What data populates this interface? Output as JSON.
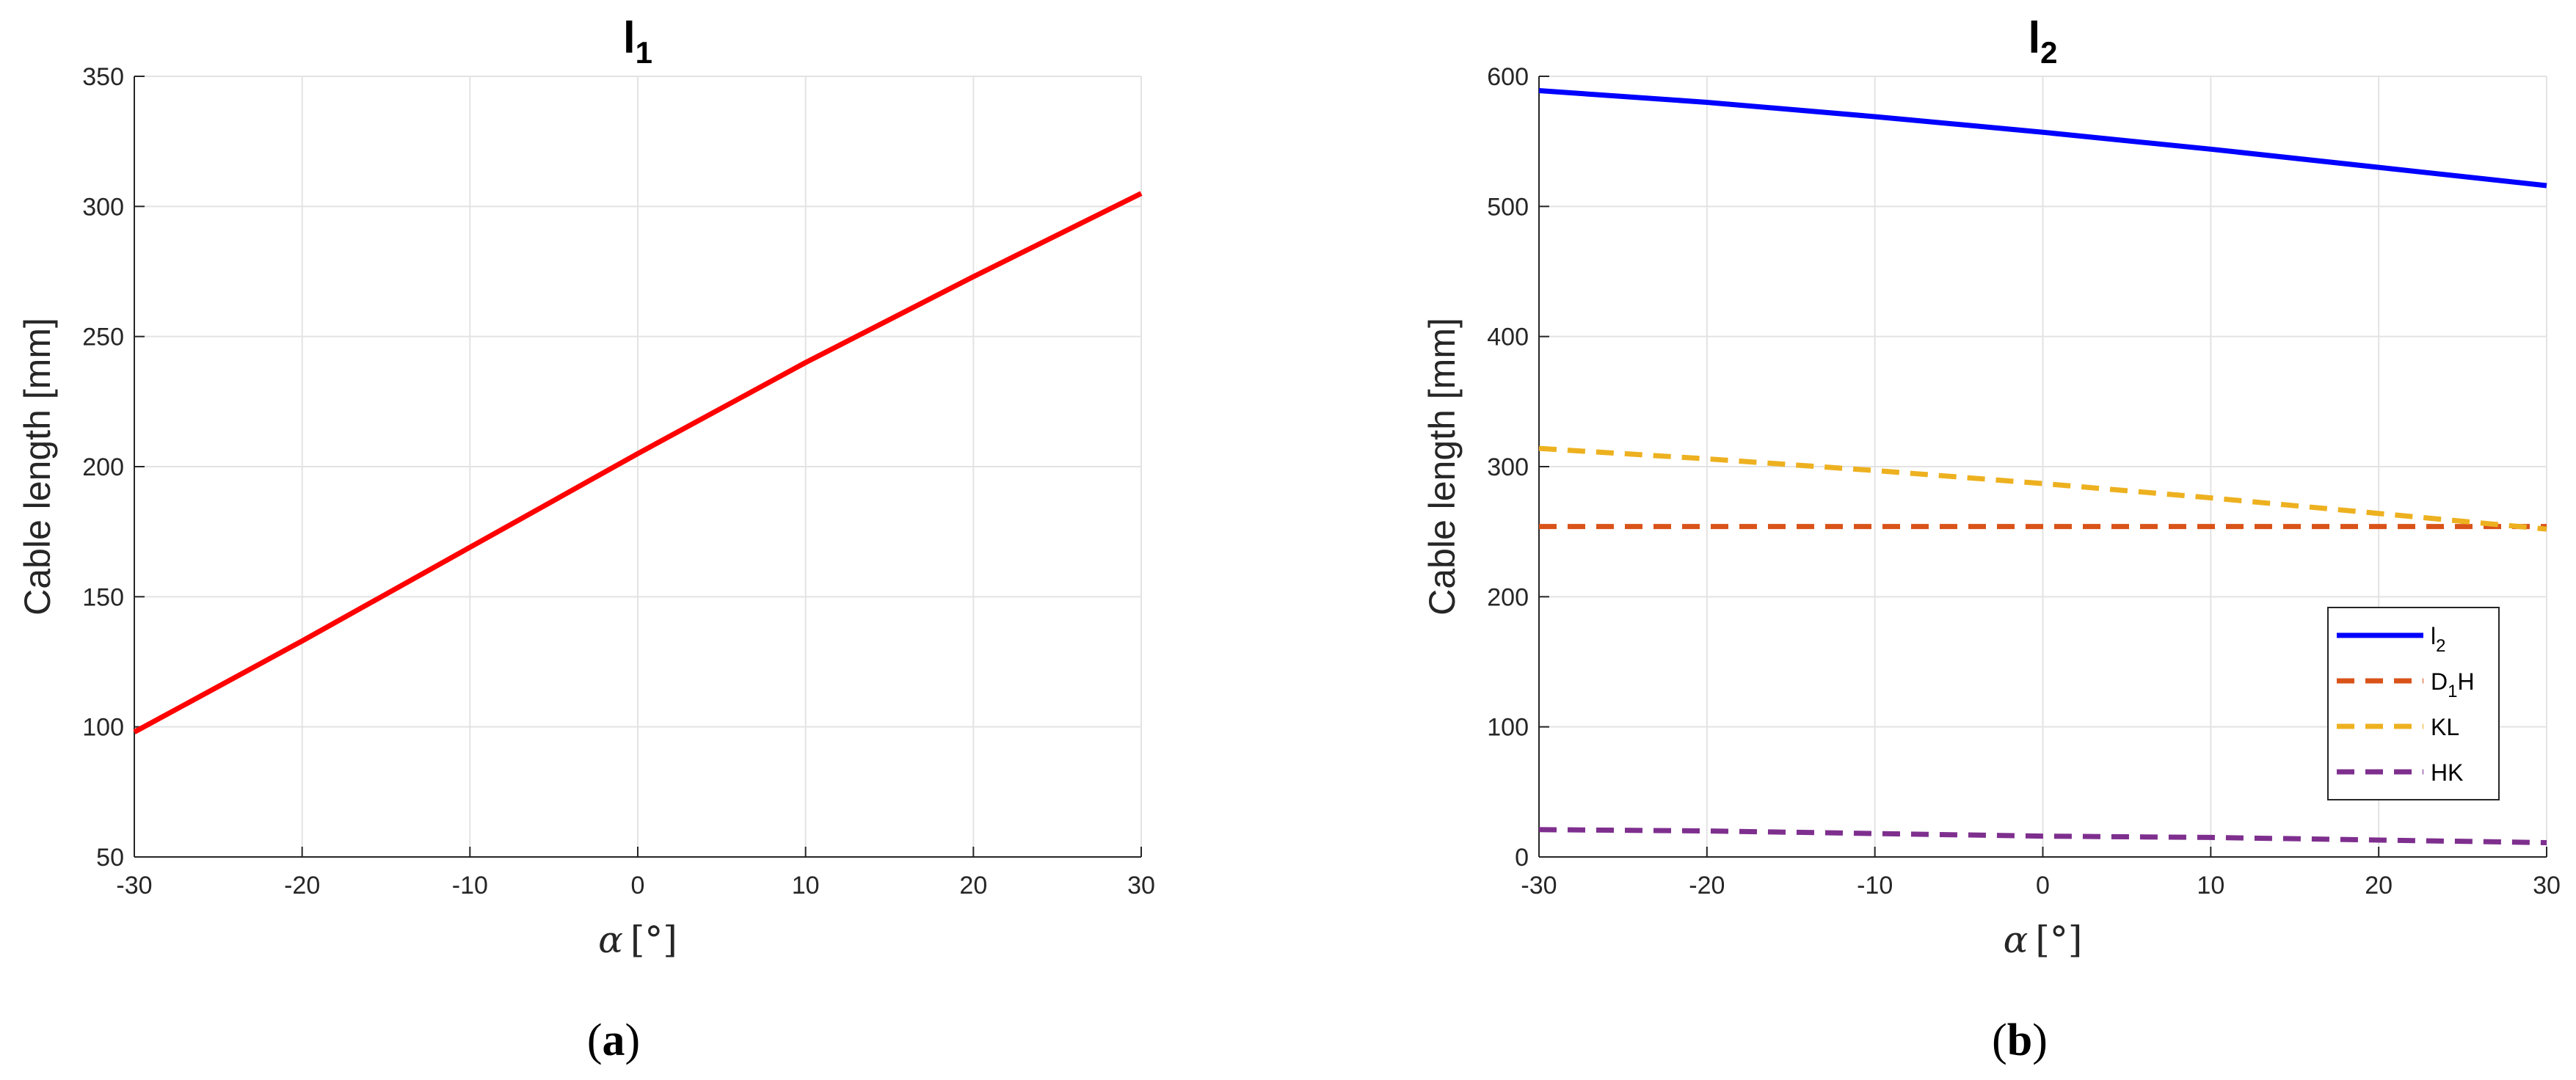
{
  "chart_data": [
    {
      "type": "line",
      "panel_label_open": "(",
      "panel_label": "a",
      "panel_label_close": ")",
      "title": "l",
      "title_sub": "1",
      "xlabel_symbol": "α",
      "xlabel_unit": "[°]",
      "ylabel": "Cable length [mm]",
      "xlim": [
        -30,
        30
      ],
      "ylim": [
        50,
        350
      ],
      "xticks": [
        -30,
        -20,
        -10,
        0,
        10,
        20,
        30
      ],
      "yticks": [
        50,
        100,
        150,
        200,
        250,
        300,
        350
      ],
      "grid": true,
      "series": [
        {
          "color": "#ff0000",
          "style": "solid",
          "x": [
            -30,
            -20,
            -10,
            0,
            10,
            20,
            30
          ],
          "y": [
            98,
            133,
            169,
            205,
            240,
            273,
            305
          ]
        }
      ]
    },
    {
      "type": "line",
      "panel_label_open": "(",
      "panel_label": "b",
      "panel_label_close": ")",
      "title": "l",
      "title_sub": "2",
      "xlabel_symbol": "α",
      "xlabel_unit": "[°]",
      "ylabel": "Cable length [mm]",
      "xlim": [
        -30,
        30
      ],
      "ylim": [
        0,
        600
      ],
      "xticks": [
        -30,
        -20,
        -10,
        0,
        10,
        20,
        30
      ],
      "yticks": [
        0,
        100,
        200,
        300,
        400,
        500,
        600
      ],
      "grid": true,
      "legend_position": "bottom-right",
      "series": [
        {
          "name": "l",
          "name_sub": "2",
          "name_suffix": "",
          "color": "#0000ff",
          "style": "solid",
          "x": [
            -30,
            -20,
            -10,
            0,
            10,
            20,
            30
          ],
          "y": [
            589,
            580,
            569,
            557,
            544,
            530,
            516
          ]
        },
        {
          "name": "D",
          "name_sub": "1",
          "name_suffix": "H",
          "color": "#d95319",
          "style": "dashed",
          "x": [
            -30,
            -20,
            -10,
            0,
            10,
            20,
            30
          ],
          "y": [
            254,
            254,
            254,
            254,
            254,
            254,
            254
          ]
        },
        {
          "name": "KL",
          "name_sub": "",
          "name_suffix": "",
          "color": "#edb120",
          "style": "dashed",
          "x": [
            -30,
            -20,
            -10,
            0,
            10,
            20,
            30
          ],
          "y": [
            314,
            306,
            297,
            287,
            276,
            264,
            252
          ]
        },
        {
          "name": "HK",
          "name_sub": "",
          "name_suffix": "",
          "color": "#7e2f8e",
          "style": "dashed",
          "x": [
            -30,
            -20,
            -10,
            0,
            10,
            20,
            30
          ],
          "y": [
            21,
            20,
            18,
            16,
            15,
            13,
            11
          ]
        }
      ]
    }
  ]
}
